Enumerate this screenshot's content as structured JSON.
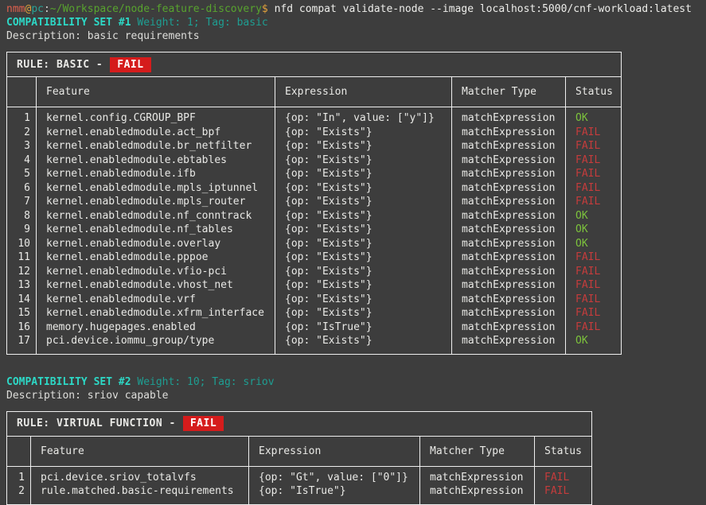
{
  "prompt": {
    "user": "nmm",
    "at": "@",
    "host": "pc",
    "colon": ":",
    "path": "~/Workspace/node-feature-discovery",
    "dollar": "$ ",
    "command": "nfd compat validate-node --image localhost:5000/cnf-workload:latest"
  },
  "colors": {
    "background": "#3d3d3d",
    "accent_cyan": "#2dd8c6",
    "accent_teal": "#1e9e92",
    "ok_green": "#7cc23c",
    "fail_red": "#c43c3c",
    "fail_badge_bg": "#d51c1c",
    "border": "#efefef"
  },
  "sets": [
    {
      "title": "COMPATIBILITY SET #1",
      "meta": " Weight: 1; Tag: basic",
      "description": "Description: basic requirements",
      "rule_label": "RULE: BASIC -",
      "rule_status": "FAIL",
      "columns": {
        "feature": "Feature",
        "expression": "Expression",
        "matcher": "Matcher Type",
        "status": "Status"
      },
      "rows": [
        {
          "num": "1",
          "feature": "kernel.config.CGROUP_BPF",
          "expression": "{op: \"In\", value: [\"y\"]}",
          "matcher": "matchExpression",
          "status": "OK"
        },
        {
          "num": "2",
          "feature": "kernel.enabledmodule.act_bpf",
          "expression": "{op: \"Exists\"}",
          "matcher": "matchExpression",
          "status": "FAIL"
        },
        {
          "num": "3",
          "feature": "kernel.enabledmodule.br_netfilter",
          "expression": "{op: \"Exists\"}",
          "matcher": "matchExpression",
          "status": "FAIL"
        },
        {
          "num": "4",
          "feature": "kernel.enabledmodule.ebtables",
          "expression": "{op: \"Exists\"}",
          "matcher": "matchExpression",
          "status": "FAIL"
        },
        {
          "num": "5",
          "feature": "kernel.enabledmodule.ifb",
          "expression": "{op: \"Exists\"}",
          "matcher": "matchExpression",
          "status": "FAIL"
        },
        {
          "num": "6",
          "feature": "kernel.enabledmodule.mpls_iptunnel",
          "expression": "{op: \"Exists\"}",
          "matcher": "matchExpression",
          "status": "FAIL"
        },
        {
          "num": "7",
          "feature": "kernel.enabledmodule.mpls_router",
          "expression": "{op: \"Exists\"}",
          "matcher": "matchExpression",
          "status": "FAIL"
        },
        {
          "num": "8",
          "feature": "kernel.enabledmodule.nf_conntrack",
          "expression": "{op: \"Exists\"}",
          "matcher": "matchExpression",
          "status": "OK"
        },
        {
          "num": "9",
          "feature": "kernel.enabledmodule.nf_tables",
          "expression": "{op: \"Exists\"}",
          "matcher": "matchExpression",
          "status": "OK"
        },
        {
          "num": "10",
          "feature": "kernel.enabledmodule.overlay",
          "expression": "{op: \"Exists\"}",
          "matcher": "matchExpression",
          "status": "OK"
        },
        {
          "num": "11",
          "feature": "kernel.enabledmodule.pppoe",
          "expression": "{op: \"Exists\"}",
          "matcher": "matchExpression",
          "status": "FAIL"
        },
        {
          "num": "12",
          "feature": "kernel.enabledmodule.vfio-pci",
          "expression": "{op: \"Exists\"}",
          "matcher": "matchExpression",
          "status": "FAIL"
        },
        {
          "num": "13",
          "feature": "kernel.enabledmodule.vhost_net",
          "expression": "{op: \"Exists\"}",
          "matcher": "matchExpression",
          "status": "FAIL"
        },
        {
          "num": "14",
          "feature": "kernel.enabledmodule.vrf",
          "expression": "{op: \"Exists\"}",
          "matcher": "matchExpression",
          "status": "FAIL"
        },
        {
          "num": "15",
          "feature": "kernel.enabledmodule.xfrm_interface",
          "expression": "{op: \"Exists\"}",
          "matcher": "matchExpression",
          "status": "FAIL"
        },
        {
          "num": "16",
          "feature": "memory.hugepages.enabled",
          "expression": "{op: \"IsTrue\"}",
          "matcher": "matchExpression",
          "status": "FAIL"
        },
        {
          "num": "17",
          "feature": "pci.device.iommu_group/type",
          "expression": "{op: \"Exists\"}",
          "matcher": "matchExpression",
          "status": "OK"
        }
      ]
    },
    {
      "title": "COMPATIBILITY SET #2",
      "meta": " Weight: 10; Tag: sriov",
      "description": "Description: sriov capable",
      "rule_label": "RULE: VIRTUAL FUNCTION -",
      "rule_status": "FAIL",
      "columns": {
        "feature": "Feature",
        "expression": "Expression",
        "matcher": "Matcher Type",
        "status": "Status"
      },
      "rows": [
        {
          "num": "1",
          "feature": "pci.device.sriov_totalvfs",
          "expression": "{op: \"Gt\", value: [\"0\"]}",
          "matcher": "matchExpression",
          "status": "FAIL"
        },
        {
          "num": "2",
          "feature": "rule.matched.basic-requirements",
          "expression": "{op: \"IsTrue\"}",
          "matcher": "matchExpression",
          "status": "FAIL"
        }
      ]
    }
  ]
}
